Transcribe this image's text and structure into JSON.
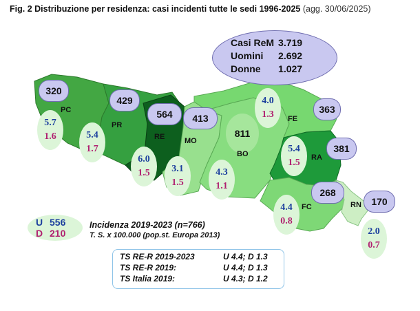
{
  "title": {
    "main": "Fig. 2  Distribuzione per  residenza: casi incidenti tutte le sedi 1996-2025",
    "sub": "(agg. 30/06/2025)"
  },
  "summary": {
    "rows": [
      {
        "label": "Casi ReM",
        "value": "3.719"
      },
      {
        "label": "Uomini",
        "value": "2.692"
      },
      {
        "label": "Donne",
        "value": "1.027"
      }
    ]
  },
  "provinces": [
    {
      "code": "PC",
      "count": "320",
      "u": "5.7",
      "d": "1.6"
    },
    {
      "code": "PR",
      "count": "429",
      "u": "5.4",
      "d": "1.7"
    },
    {
      "code": "RE",
      "count": "564",
      "u": "6.0",
      "d": "1.5"
    },
    {
      "code": "MO",
      "count": "413",
      "u": "3.1",
      "d": "1.5"
    },
    {
      "code": "BO",
      "count": "811",
      "u": "4.3",
      "d": "1.1"
    },
    {
      "code": "FE",
      "count": "363",
      "u": "4.0",
      "d": "1.3"
    },
    {
      "code": "RA",
      "count": "381",
      "u": "5.4",
      "d": "1.5"
    },
    {
      "code": "FC",
      "count": "268",
      "u": "4.4",
      "d": "0.8"
    },
    {
      "code": "RN",
      "count": "170",
      "u": "2.0",
      "d": "0.7"
    }
  ],
  "legend": {
    "u_key": "U",
    "u_value": "556",
    "d_key": "D",
    "d_value": "210",
    "incidence_title": "Incidenza 2019-2023 (n=766)",
    "incidence_sub": "T. S. x 100.000 (pop.st. Europa 2013)"
  },
  "ts_box": [
    {
      "label": "TS RE-R 2019-2023",
      "value": "U 4.4; D 1.3"
    },
    {
      "label": "TS RE-R 2019:",
      "value": "U 4.4; D 1.3"
    },
    {
      "label": "TS Italia 2019:",
      "value": "U 4.3; D 1.2"
    }
  ],
  "colors": {
    "pc": "#43a743",
    "pr": "#35a040",
    "re": "#0d5f1e",
    "mo": "#98e08e",
    "bo": "#88dd80",
    "fe": "#77d870",
    "ra": "#1e9a3a",
    "fc": "#7ed876",
    "rn": "#cdeec4",
    "u_text": "#1c3f9e",
    "d_text": "#b02070"
  }
}
